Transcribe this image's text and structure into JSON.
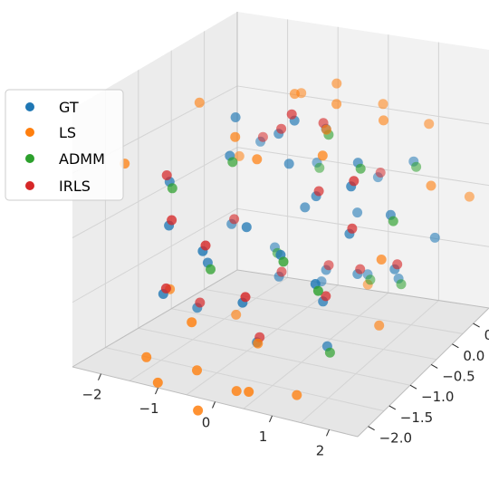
{
  "chart_data": {
    "type": "scatter3d",
    "legend_position": "upper-left",
    "grid": true,
    "colors": {
      "GT": "#1f77b4",
      "LS": "#ff7f0e",
      "ADMM": "#2ca02c",
      "IRLS": "#d62728"
    },
    "legend": [
      "GT",
      "LS",
      "ADMM",
      "IRLS"
    ],
    "axes": {
      "x": {
        "ticks": [
          "−2",
          "−1",
          "0",
          "1",
          "2"
        ],
        "range": [
          -2.5,
          2.5
        ]
      },
      "y": {
        "ticks": [
          "−2.0",
          "−1.5",
          "−1.0",
          "−0.5",
          "0.0",
          "0"
        ],
        "range": [
          -2.2,
          0.6
        ]
      },
      "z": {
        "ticks": [],
        "range": [
          -1,
          1
        ]
      }
    },
    "series": [
      {
        "name": "GT",
        "points": [
          [
            -1.8,
            -1.2,
            0.35
          ],
          [
            -1.4,
            -1.6,
            0.1
          ],
          [
            -1.0,
            -0.9,
            0.6
          ],
          [
            -0.6,
            -0.4,
            0.75
          ],
          [
            -0.2,
            -0.6,
            0.55
          ],
          [
            0.2,
            -0.3,
            0.85
          ],
          [
            0.6,
            -0.9,
            0.4
          ],
          [
            1.0,
            -0.5,
            0.65
          ],
          [
            1.4,
            -1.1,
            0.2
          ],
          [
            1.8,
            -0.7,
            0.3
          ],
          [
            -1.6,
            -0.3,
            -0.2
          ],
          [
            -1.2,
            0.1,
            -0.5
          ],
          [
            -0.8,
            -0.2,
            -0.65
          ],
          [
            -0.4,
            0.2,
            -0.8
          ],
          [
            0.0,
            -0.1,
            -0.55
          ],
          [
            0.4,
            0.3,
            -0.7
          ],
          [
            0.8,
            -0.3,
            -0.45
          ],
          [
            1.2,
            0.1,
            -0.6
          ],
          [
            1.6,
            -0.4,
            -0.3
          ],
          [
            2.0,
            0.0,
            -0.1
          ],
          [
            -1.3,
            -1.8,
            -0.4
          ],
          [
            -0.9,
            -1.4,
            -0.2
          ],
          [
            -0.5,
            -1.9,
            0.05
          ],
          [
            -0.1,
            -1.5,
            0.2
          ],
          [
            0.3,
            -2.0,
            -0.25
          ],
          [
            0.7,
            -1.7,
            0.1
          ],
          [
            1.1,
            -1.3,
            -0.35
          ],
          [
            1.5,
            -1.9,
            0.0
          ],
          [
            -1.7,
            0.3,
            0.45
          ],
          [
            -0.7,
            0.4,
            0.3
          ],
          [
            0.5,
            0.4,
            0.25
          ],
          [
            1.3,
            0.3,
            0.5
          ],
          [
            -0.3,
            -1.1,
            -0.9
          ],
          [
            0.9,
            -1.0,
            -0.85
          ],
          [
            -1.1,
            -0.7,
            0.9
          ],
          [
            0.1,
            -0.8,
            1.0
          ],
          [
            1.7,
            -1.4,
            0.7
          ],
          [
            -1.5,
            -1.0,
            -0.75
          ],
          [
            0.0,
            -0.5,
            0.15
          ],
          [
            0.6,
            -0.1,
            0.05
          ]
        ]
      },
      {
        "name": "LS",
        "points": [
          [
            -2.3,
            -1.5,
            0.5
          ],
          [
            -2.1,
            -0.4,
            0.9
          ],
          [
            -2.0,
            0.2,
            0.3
          ],
          [
            -1.5,
            -1.9,
            -0.9
          ],
          [
            -1.1,
            -2.1,
            -1.0
          ],
          [
            -0.7,
            -1.8,
            -0.95
          ],
          [
            -0.3,
            -2.2,
            -1.1
          ],
          [
            0.1,
            -1.9,
            -1.0
          ],
          [
            0.5,
            -2.1,
            -0.9
          ],
          [
            0.9,
            -1.6,
            -1.05
          ],
          [
            -0.5,
            -0.2,
            1.1
          ],
          [
            0.0,
            0.1,
            1.2
          ],
          [
            0.4,
            -0.3,
            1.1
          ],
          [
            0.8,
            0.2,
            1.05
          ],
          [
            1.2,
            -0.2,
            1.0
          ],
          [
            -0.9,
            0.3,
            1.0
          ],
          [
            1.6,
            0.3,
            0.9
          ],
          [
            2.2,
            -0.3,
            0.5
          ],
          [
            2.3,
            0.4,
            0.2
          ],
          [
            -1.9,
            -1.1,
            -0.6
          ],
          [
            -0.2,
            -1.2,
            0.7
          ],
          [
            0.6,
            -0.7,
            0.95
          ],
          [
            1.0,
            -1.2,
            0.85
          ],
          [
            -0.8,
            -1.0,
            0.8
          ],
          [
            1.9,
            -1.0,
            0.0
          ],
          [
            -1.3,
            -0.5,
            -0.95
          ],
          [
            0.3,
            0.4,
            -0.85
          ],
          [
            1.4,
            -0.5,
            -0.8
          ],
          [
            -0.6,
            -2.0,
            -0.5
          ],
          [
            0.2,
            -1.6,
            -0.7
          ]
        ]
      },
      {
        "name": "ADMM",
        "points": [
          [
            -1.75,
            -1.2,
            0.3
          ],
          [
            -0.95,
            -0.9,
            0.55
          ],
          [
            0.25,
            -0.3,
            0.8
          ],
          [
            1.05,
            -0.5,
            0.6
          ],
          [
            1.85,
            -0.7,
            0.25
          ],
          [
            -1.15,
            0.1,
            -0.55
          ],
          [
            0.45,
            0.3,
            -0.75
          ],
          [
            1.25,
            0.1,
            -0.65
          ],
          [
            -0.85,
            -1.4,
            -0.25
          ],
          [
            0.75,
            -1.7,
            0.05
          ],
          [
            1.55,
            -1.9,
            -0.05
          ],
          [
            -0.65,
            0.4,
            0.25
          ],
          [
            1.35,
            0.3,
            0.45
          ],
          [
            0.95,
            -1.0,
            -0.9
          ]
        ]
      },
      {
        "name": "IRLS",
        "points": [
          [
            -1.85,
            -1.2,
            0.4
          ],
          [
            -1.35,
            -1.6,
            0.15
          ],
          [
            -0.55,
            -0.4,
            0.8
          ],
          [
            0.15,
            -0.3,
            0.9
          ],
          [
            0.65,
            -0.9,
            0.45
          ],
          [
            1.45,
            -1.1,
            0.25
          ],
          [
            -1.55,
            -0.3,
            -0.15
          ],
          [
            -0.75,
            -0.2,
            -0.6
          ],
          [
            0.05,
            -0.1,
            -0.5
          ],
          [
            0.85,
            -0.3,
            -0.4
          ],
          [
            1.65,
            -0.4,
            -0.25
          ],
          [
            -1.25,
            -1.8,
            -0.35
          ],
          [
            -0.45,
            -1.9,
            0.1
          ],
          [
            0.35,
            -2.0,
            -0.2
          ],
          [
            1.15,
            -1.3,
            -0.3
          ],
          [
            -1.65,
            0.3,
            0.5
          ],
          [
            0.55,
            0.4,
            0.3
          ],
          [
            -0.25,
            -1.1,
            -0.85
          ],
          [
            0.05,
            -0.8,
            1.05
          ],
          [
            1.75,
            -1.4,
            0.75
          ],
          [
            -1.45,
            -1.0,
            -0.7
          ]
        ]
      }
    ]
  }
}
